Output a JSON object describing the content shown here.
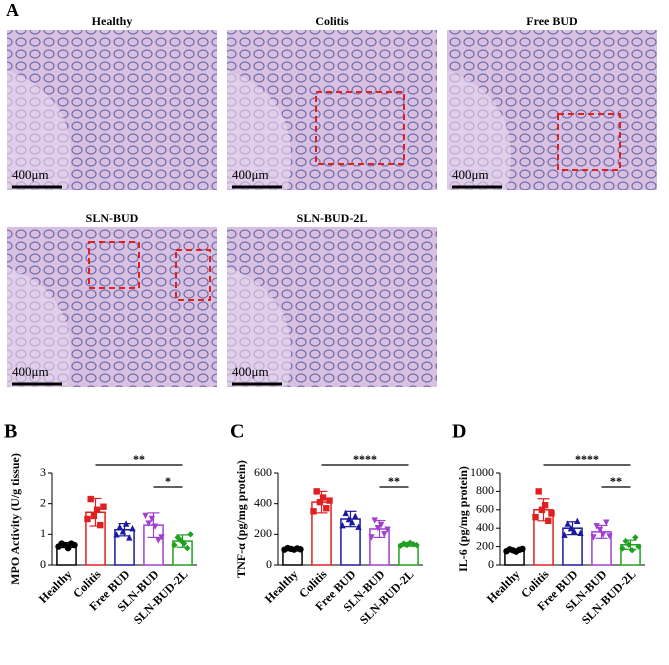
{
  "figure": {
    "panel_label": "A",
    "scale_bar": "400μm",
    "panels": [
      "Healthy",
      "Colitis",
      "Free BUD",
      "SLN-BUD",
      "SLN-BUD-2L"
    ]
  },
  "chart_data": [
    {
      "type": "bar",
      "panel_label": "B",
      "ylabel": "MPO Activity  (U/g tissue)",
      "categories": [
        "Healthy",
        "Colitis",
        "Free BUD",
        "SLN-BUD",
        "SLN-BUD-2L"
      ],
      "colors": [
        "#000000",
        "#e02020",
        "#1a1aa0",
        "#a040d0",
        "#20a020"
      ],
      "values": [
        0.65,
        1.72,
        1.15,
        1.3,
        0.78
      ],
      "errors": [
        0.08,
        0.45,
        0.2,
        0.4,
        0.2
      ],
      "points": [
        [
          0.6,
          0.7,
          0.65,
          0.55,
          0.7,
          0.65
        ],
        [
          1.5,
          2.15,
          1.6,
          1.8,
          1.3,
          1.9
        ],
        [
          1.0,
          1.25,
          1.1,
          1.35,
          0.9,
          1.2
        ],
        [
          1.6,
          1.35,
          1.5,
          1.25,
          0.8,
          0.9
        ],
        [
          0.65,
          0.9,
          0.8,
          0.7,
          0.55,
          1.0
        ]
      ],
      "ylim": [
        0,
        3
      ],
      "yticks": [
        0,
        1,
        2,
        3
      ],
      "significance": [
        {
          "label": "**",
          "span": [
            "Colitis",
            "SLN-BUD-2L"
          ]
        },
        {
          "label": "*",
          "span": [
            "SLN-BUD",
            "SLN-BUD-2L"
          ]
        }
      ]
    },
    {
      "type": "bar",
      "panel_label": "C",
      "ylabel": "TNF-α  (pg/mg protein)",
      "categories": [
        "Healthy",
        "Colitis",
        "Free BUD",
        "SLN-BUD",
        "SLN-BUD-2L"
      ],
      "colors": [
        "#000000",
        "#e02020",
        "#1a1aa0",
        "#a040d0",
        "#20a020"
      ],
      "values": [
        105,
        410,
        300,
        235,
        135
      ],
      "errors": [
        8,
        70,
        50,
        55,
        12
      ],
      "points": [
        [
          100,
          110,
          105,
          100,
          108,
          102
        ],
        [
          350,
          480,
          410,
          440,
          370,
          420
        ],
        [
          260,
          340,
          300,
          280,
          320,
          250
        ],
        [
          180,
          290,
          240,
          260,
          200,
          230
        ],
        [
          125,
          140,
          130,
          145,
          135,
          130
        ]
      ],
      "ylim": [
        0,
        600
      ],
      "yticks": [
        0,
        200,
        400,
        600
      ],
      "significance": [
        {
          "label": "****",
          "span": [
            "Colitis",
            "SLN-BUD-2L"
          ]
        },
        {
          "label": "**",
          "span": [
            "SLN-BUD",
            "SLN-BUD-2L"
          ]
        }
      ]
    },
    {
      "type": "bar",
      "panel_label": "D",
      "ylabel": "IL-6 (pg/mg protein)",
      "categories": [
        "Healthy",
        "Colitis",
        "Free BUD",
        "SLN-BUD",
        "SLN-BUD-2L"
      ],
      "colors": [
        "#000000",
        "#e02020",
        "#1a1aa0",
        "#a040d0",
        "#20a020"
      ],
      "values": [
        160,
        600,
        400,
        360,
        220
      ],
      "errors": [
        15,
        120,
        70,
        70,
        50
      ],
      "points": [
        [
          150,
          170,
          160,
          145,
          165,
          175
        ],
        [
          520,
          800,
          600,
          650,
          480,
          560
        ],
        [
          330,
          450,
          400,
          370,
          480,
          350
        ],
        [
          300,
          420,
          380,
          330,
          460,
          310
        ],
        [
          180,
          260,
          220,
          160,
          300,
          200
        ]
      ],
      "ylim": [
        0,
        1000
      ],
      "yticks": [
        0,
        200,
        400,
        600,
        800,
        1000
      ],
      "significance": [
        {
          "label": "****",
          "span": [
            "Colitis",
            "SLN-BUD-2L"
          ]
        },
        {
          "label": "**",
          "span": [
            "SLN-BUD",
            "SLN-BUD-2L"
          ]
        }
      ]
    }
  ]
}
